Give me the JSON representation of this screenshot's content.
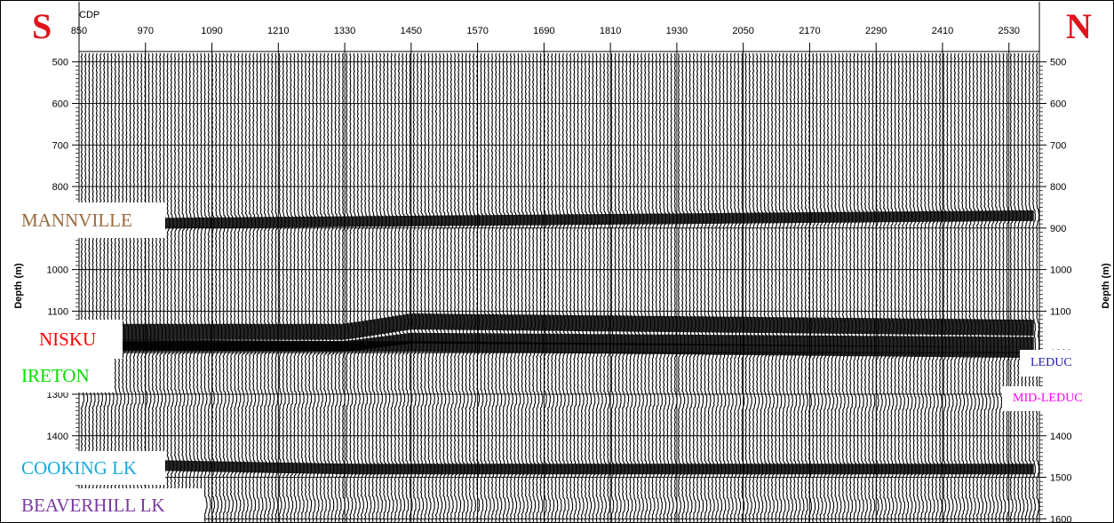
{
  "compass": {
    "left": "S",
    "right": "N",
    "color": "#e0141c"
  },
  "chart_data": {
    "type": "seismic-section",
    "x_axis_label": "CDP",
    "x_ticks": [
      850,
      970,
      1090,
      1210,
      1330,
      1450,
      1570,
      1690,
      1810,
      1930,
      2050,
      2170,
      2290,
      2410,
      2530
    ],
    "x_range": [
      850,
      2585
    ],
    "y_axis_label": "Depth (m)",
    "y_ticks": [
      500,
      600,
      700,
      800,
      900,
      1000,
      1100,
      1200,
      1300,
      1400,
      1500,
      1600
    ],
    "y_range": [
      475,
      1610
    ],
    "y_reversed": true,
    "grid": true,
    "horizons": [
      {
        "name": "MANNVILLE",
        "color": "#9a6a3c",
        "depth_at": [
          [
            850,
            890
          ],
          [
            2585,
            870
          ]
        ]
      },
      {
        "name": "NISKU",
        "color": "#ff0000",
        "depth_at": [
          [
            850,
            1150
          ],
          [
            1330,
            1150
          ],
          [
            1450,
            1125
          ],
          [
            2585,
            1140
          ]
        ]
      },
      {
        "name": "IRETON",
        "color": "#00e000",
        "depth_at": [
          [
            850,
            1180
          ],
          [
            1330,
            1185
          ],
          [
            1450,
            1165
          ],
          [
            2585,
            1175
          ]
        ]
      },
      {
        "name": "LEDUC",
        "color": "#1c1ca8",
        "depth_at": [
          [
            1450,
            1185
          ],
          [
            2585,
            1200
          ]
        ]
      },
      {
        "name": "MID-LEDUC",
        "color": "#ff00ff",
        "depth_at": [
          [
            1420,
            1310
          ],
          [
            2585,
            1320
          ]
        ]
      },
      {
        "name": "COOKING LK",
        "color": "#1aa8e0",
        "depth_at": [
          [
            930,
            1470
          ],
          [
            1330,
            1480
          ]
        ]
      },
      {
        "name": "BEAVERHILL LK",
        "color": "#7b3aa0",
        "depth_at": [
          [
            850,
            1565
          ],
          [
            2585,
            1570
          ]
        ]
      }
    ]
  }
}
